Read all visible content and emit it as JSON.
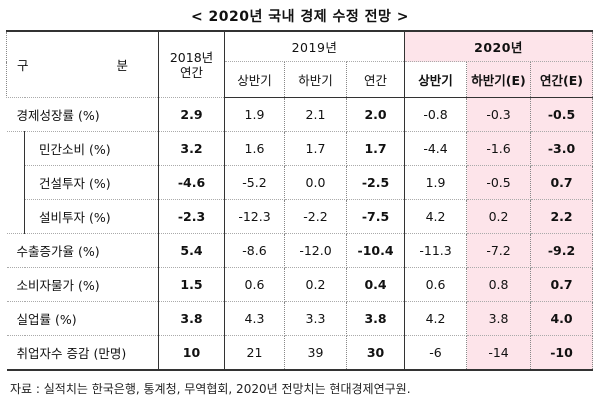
{
  "title": "< 2020년 국내 경제 수정 전망 >",
  "header": {
    "col_label_left": "구",
    "col_label_right": "분",
    "col_2018_line1": "2018년",
    "col_2018_line2": "연간",
    "group_2019": "2019년",
    "group_2020": "2020년",
    "sub_2019": [
      "상반기",
      "하반기",
      "연간"
    ],
    "sub_2020": [
      "상반기",
      "하반기(E)",
      "연간(E)"
    ]
  },
  "rows": [
    {
      "label": "경제성장률 (%)",
      "indent": false,
      "values": [
        "2.9",
        "1.9",
        "2.1",
        "2.0",
        "-0.8",
        "-0.3",
        "-0.5"
      ]
    },
    {
      "label": "민간소비 (%)",
      "indent": true,
      "values": [
        "3.2",
        "1.6",
        "1.7",
        "1.7",
        "-4.4",
        "-1.6",
        "-3.0"
      ]
    },
    {
      "label": "건설투자 (%)",
      "indent": true,
      "values": [
        "-4.6",
        "-5.2",
        "0.0",
        "-2.5",
        "1.9",
        "-0.5",
        "0.7"
      ]
    },
    {
      "label": "설비투자 (%)",
      "indent": true,
      "values": [
        "-2.3",
        "-12.3",
        "-2.2",
        "-7.5",
        "4.2",
        "0.2",
        "2.2"
      ]
    },
    {
      "label": "수출증가율 (%)",
      "indent": false,
      "values": [
        "5.4",
        "-8.6",
        "-12.0",
        "-10.4",
        "-11.3",
        "-7.2",
        "-9.2"
      ]
    },
    {
      "label": "소비자물가 (%)",
      "indent": false,
      "values": [
        "1.5",
        "0.6",
        "0.2",
        "0.4",
        "0.6",
        "0.8",
        "0.7"
      ]
    },
    {
      "label": "실업률 (%)",
      "indent": false,
      "values": [
        "3.8",
        "4.3",
        "3.3",
        "3.8",
        "4.2",
        "3.8",
        "4.0"
      ]
    },
    {
      "label": "취업자수 증감 (만명)",
      "indent": false,
      "values": [
        "10",
        "21",
        "39",
        "30",
        "-6",
        "-14",
        "-10"
      ]
    }
  ],
  "source": "자료 : 실적치는 한국은행, 통계청, 무역협회, 2020년 전망치는 현대경제연구원.",
  "colors": {
    "highlight_pink": "#fde4ea"
  }
}
